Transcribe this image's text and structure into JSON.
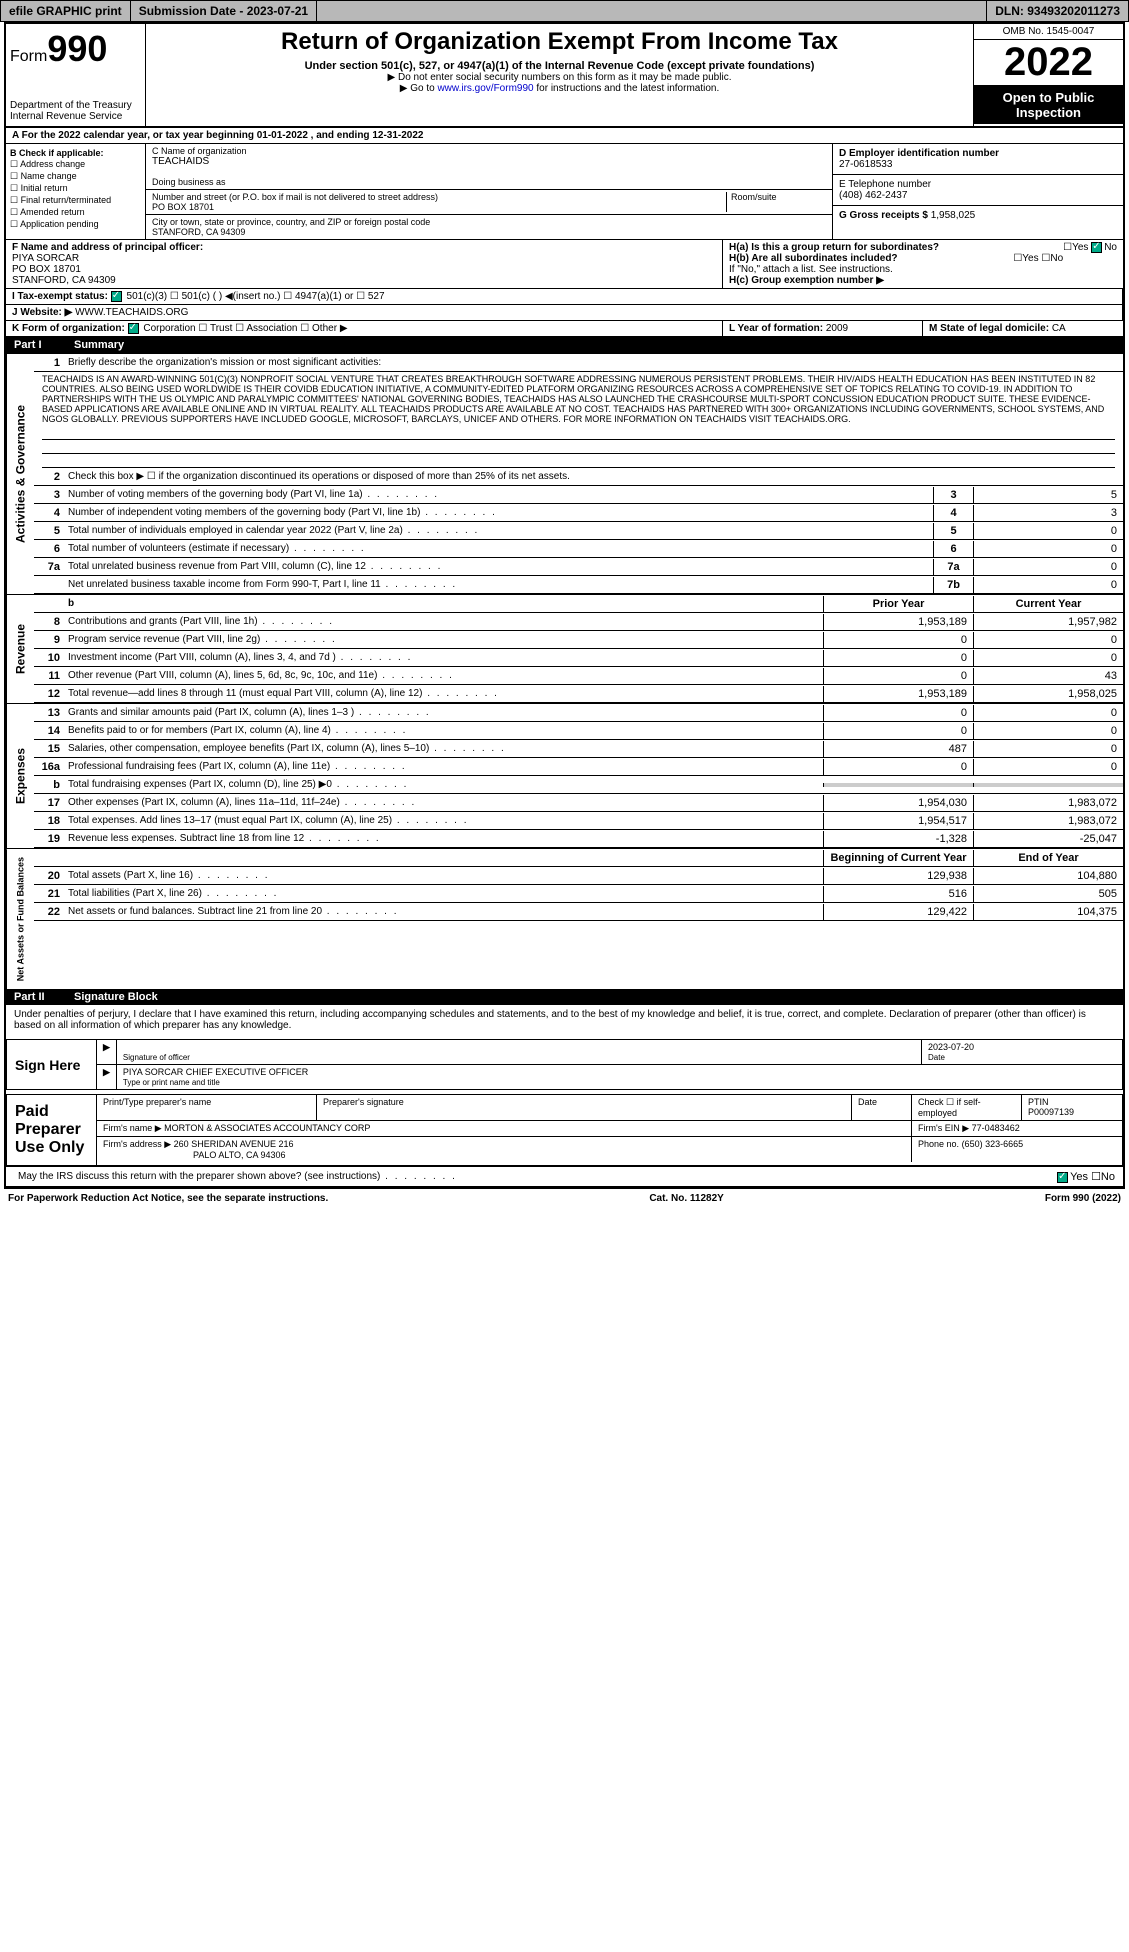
{
  "top": {
    "efile": "efile GRAPHIC print",
    "submission": "Submission Date - 2023-07-21",
    "dln": "DLN: 93493202011273"
  },
  "header": {
    "form_prefix": "Form",
    "form_num": "990",
    "dept": "Department of the Treasury Internal Revenue Service",
    "title": "Return of Organization Exempt From Income Tax",
    "sub1": "Under section 501(c), 527, or 4947(a)(1) of the Internal Revenue Code (except private foundations)",
    "sub2": "▶ Do not enter social security numbers on this form as it may be made public.",
    "sub3_pre": "▶ Go to ",
    "sub3_link": "www.irs.gov/Form990",
    "sub3_post": " for instructions and the latest information.",
    "omb": "OMB No. 1545-0047",
    "year": "2022",
    "open": "Open to Public Inspection"
  },
  "a_line": "A For the 2022 calendar year, or tax year beginning 01-01-2022   , and ending 12-31-2022",
  "b": {
    "label": "B Check if applicable:",
    "items": [
      "Address change",
      "Name change",
      "Initial return",
      "Final return/terminated",
      "Amended return",
      "Application pending"
    ]
  },
  "c": {
    "name_label": "C Name of organization",
    "name": "TEACHAIDS",
    "dba_label": "Doing business as",
    "addr_label": "Number and street (or P.O. box if mail is not delivered to street address)",
    "addr": "PO BOX 18701",
    "room_label": "Room/suite",
    "city_label": "City or town, state or province, country, and ZIP or foreign postal code",
    "city": "STANFORD, CA  94309"
  },
  "d": {
    "ein_label": "D Employer identification number",
    "ein": "27-0618533",
    "phone_label": "E Telephone number",
    "phone": "(408) 462-2437",
    "gross_label": "G Gross receipts $",
    "gross": "1,958,025"
  },
  "f": {
    "label": "F  Name and address of principal officer:",
    "name": "PIYA SORCAR",
    "addr1": "PO BOX 18701",
    "addr2": "STANFORD, CA  94309"
  },
  "h": {
    "a_label": "H(a)  Is this a group return for subordinates?",
    "b_label": "H(b)  Are all subordinates included?",
    "attach": "If \"No,\" attach a list. See instructions.",
    "c_label": "H(c)  Group exemption number ▶"
  },
  "i": {
    "label": "I  Tax-exempt status:",
    "opts": [
      "501(c)(3)",
      "501(c) (  ) ◀(insert no.)",
      "4947(a)(1) or",
      "527"
    ]
  },
  "j": {
    "label": "J  Website: ▶",
    "val": " WWW.TEACHAIDS.ORG"
  },
  "k": {
    "label": "K Form of organization:",
    "opts": [
      "Corporation",
      "Trust",
      "Association",
      "Other ▶"
    ]
  },
  "l": {
    "label": "L Year of formation:",
    "val": "2009"
  },
  "m": {
    "label": "M State of legal domicile:",
    "val": "CA"
  },
  "part1": {
    "num": "Part I",
    "title": "Summary"
  },
  "mission_label": "Briefly describe the organization's mission or most significant activities:",
  "mission": "TEACHAIDS IS AN AWARD-WINNING 501(C)(3) NONPROFIT SOCIAL VENTURE THAT CREATES BREAKTHROUGH SOFTWARE ADDRESSING NUMEROUS PERSISTENT PROBLEMS. THEIR HIV/AIDS HEALTH EDUCATION HAS BEEN INSTITUTED IN 82 COUNTRIES. ALSO BEING USED WORLDWIDE IS THEIR COVIDB EDUCATION INITIATIVE, A COMMUNITY-EDITED PLATFORM ORGANIZING RESOURCES ACROSS A COMPREHENSIVE SET OF TOPICS RELATING TO COVID-19. IN ADDITION TO PARTNERSHIPS WITH THE US OLYMPIC AND PARALYMPIC COMMITTEES' NATIONAL GOVERNING BODIES, TEACHAIDS HAS ALSO LAUNCHED THE CRASHCOURSE MULTI-SPORT CONCUSSION EDUCATION PRODUCT SUITE. THESE EVIDENCE-BASED APPLICATIONS ARE AVAILABLE ONLINE AND IN VIRTUAL REALITY. ALL TEACHAIDS PRODUCTS ARE AVAILABLE AT NO COST. TEACHAIDS HAS PARTNERED WITH 300+ ORGANIZATIONS INCLUDING GOVERNMENTS, SCHOOL SYSTEMS, AND NGOS GLOBALLY. PREVIOUS SUPPORTERS HAVE INCLUDED GOOGLE, MICROSOFT, BARCLAYS, UNICEF AND OTHERS. FOR MORE INFORMATION ON TEACHAIDS VISIT TEACHAIDS.ORG.",
  "line2": "Check this box ▶ ☐ if the organization discontinued its operations or disposed of more than 25% of its net assets.",
  "gov_rows": [
    {
      "n": "3",
      "d": "Number of voting members of the governing body (Part VI, line 1a)",
      "c": "3",
      "v": "5"
    },
    {
      "n": "4",
      "d": "Number of independent voting members of the governing body (Part VI, line 1b)",
      "c": "4",
      "v": "3"
    },
    {
      "n": "5",
      "d": "Total number of individuals employed in calendar year 2022 (Part V, line 2a)",
      "c": "5",
      "v": "0"
    },
    {
      "n": "6",
      "d": "Total number of volunteers (estimate if necessary)",
      "c": "6",
      "v": "0"
    },
    {
      "n": "7a",
      "d": "Total unrelated business revenue from Part VIII, column (C), line 12",
      "c": "7a",
      "v": "0"
    },
    {
      "n": "",
      "d": "Net unrelated business taxable income from Form 990-T, Part I, line 11",
      "c": "7b",
      "v": "0"
    }
  ],
  "col_headers": {
    "prior": "Prior Year",
    "current": "Current Year"
  },
  "rev_rows": [
    {
      "n": "8",
      "d": "Contributions and grants (Part VIII, line 1h)",
      "p": "1,953,189",
      "c": "1,957,982"
    },
    {
      "n": "9",
      "d": "Program service revenue (Part VIII, line 2g)",
      "p": "0",
      "c": "0"
    },
    {
      "n": "10",
      "d": "Investment income (Part VIII, column (A), lines 3, 4, and 7d )",
      "p": "0",
      "c": "0"
    },
    {
      "n": "11",
      "d": "Other revenue (Part VIII, column (A), lines 5, 6d, 8c, 9c, 10c, and 11e)",
      "p": "0",
      "c": "43"
    },
    {
      "n": "12",
      "d": "Total revenue—add lines 8 through 11 (must equal Part VIII, column (A), line 12)",
      "p": "1,953,189",
      "c": "1,958,025"
    }
  ],
  "exp_rows": [
    {
      "n": "13",
      "d": "Grants and similar amounts paid (Part IX, column (A), lines 1–3 )",
      "p": "0",
      "c": "0"
    },
    {
      "n": "14",
      "d": "Benefits paid to or for members (Part IX, column (A), line 4)",
      "p": "0",
      "c": "0"
    },
    {
      "n": "15",
      "d": "Salaries, other compensation, employee benefits (Part IX, column (A), lines 5–10)",
      "p": "487",
      "c": "0"
    },
    {
      "n": "16a",
      "d": "Professional fundraising fees (Part IX, column (A), line 11e)",
      "p": "0",
      "c": "0"
    },
    {
      "n": "b",
      "d": "Total fundraising expenses (Part IX, column (D), line 25) ▶0",
      "p": "",
      "c": "",
      "shaded": true
    },
    {
      "n": "17",
      "d": "Other expenses (Part IX, column (A), lines 11a–11d, 11f–24e)",
      "p": "1,954,030",
      "c": "1,983,072"
    },
    {
      "n": "18",
      "d": "Total expenses. Add lines 13–17 (must equal Part IX, column (A), line 25)",
      "p": "1,954,517",
      "c": "1,983,072"
    },
    {
      "n": "19",
      "d": "Revenue less expenses. Subtract line 18 from line 12",
      "p": "-1,328",
      "c": "-25,047"
    }
  ],
  "net_headers": {
    "begin": "Beginning of Current Year",
    "end": "End of Year"
  },
  "net_rows": [
    {
      "n": "20",
      "d": "Total assets (Part X, line 16)",
      "p": "129,938",
      "c": "104,880"
    },
    {
      "n": "21",
      "d": "Total liabilities (Part X, line 26)",
      "p": "516",
      "c": "505"
    },
    {
      "n": "22",
      "d": "Net assets or fund balances. Subtract line 21 from line 20",
      "p": "129,422",
      "c": "104,375"
    }
  ],
  "side_labels": {
    "gov": "Activities & Governance",
    "rev": "Revenue",
    "exp": "Expenses",
    "net": "Net Assets or Fund Balances"
  },
  "part2": {
    "num": "Part II",
    "title": "Signature Block"
  },
  "penalty": "Under penalties of perjury, I declare that I have examined this return, including accompanying schedules and statements, and to the best of my knowledge and belief, it is true, correct, and complete. Declaration of preparer (other than officer) is based on all information of which preparer has any knowledge.",
  "sign": {
    "here": "Sign Here",
    "sig_label": "Signature of officer",
    "date": "2023-07-20",
    "date_label": "Date",
    "name": "PIYA SORCAR CHIEF EXECUTIVE OFFICER",
    "name_label": "Type or print name and title"
  },
  "paid": {
    "label": "Paid Preparer Use Only",
    "h1": "Print/Type preparer's name",
    "h2": "Preparer's signature",
    "h3": "Date",
    "h4_a": "Check ☐ if self-employed",
    "h4_b": "PTIN",
    "ptin": "P00097139",
    "firm_name_l": "Firm's name   ▶",
    "firm_name": "MORTON & ASSOCIATES ACCOUNTANCY CORP",
    "firm_ein_l": "Firm's EIN ▶",
    "firm_ein": "77-0483462",
    "firm_addr_l": "Firm's address ▶",
    "firm_addr1": "260 SHERIDAN AVENUE 216",
    "firm_addr2": "PALO ALTO, CA  94306",
    "phone_l": "Phone no.",
    "phone": "(650) 323-6665"
  },
  "discuss": "May the IRS discuss this return with the preparer shown above? (see instructions)",
  "footer": {
    "left": "For Paperwork Reduction Act Notice, see the separate instructions.",
    "mid": "Cat. No. 11282Y",
    "right": "Form 990 (2022)"
  }
}
